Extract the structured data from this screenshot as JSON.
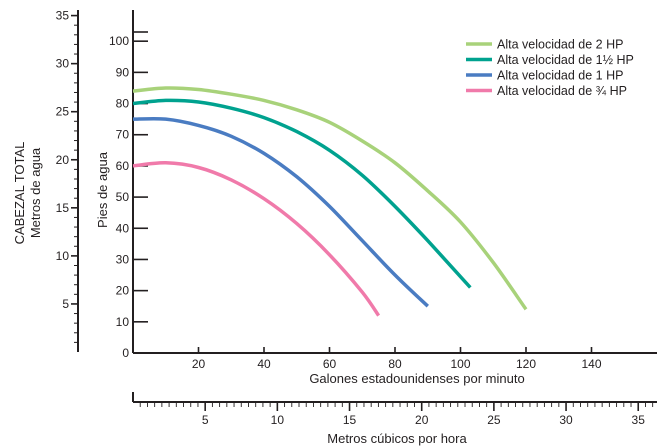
{
  "chart_data": {
    "type": "line",
    "xlabel": "Galones estadounidenses por minuto",
    "ylabel": "Pies de agua",
    "x_ticks": [
      0,
      20,
      40,
      60,
      80,
      100,
      120,
      140
    ],
    "x_tick_labels": [
      "",
      "20",
      "40",
      "60",
      "80",
      "100",
      "120",
      "140"
    ],
    "xlim": [
      0,
      160
    ],
    "y_ticks": [
      0,
      10,
      20,
      30,
      40,
      50,
      60,
      70,
      80,
      90,
      100
    ],
    "y_tick_labels": [
      "0",
      "10",
      "20",
      "30",
      "40",
      "50",
      "60",
      "70",
      "80",
      "90",
      "100"
    ],
    "ylim": [
      0,
      110
    ],
    "secondary_x": {
      "label": "Metros cúbicos por hora",
      "ticks": [
        5,
        10,
        15,
        20,
        25,
        30,
        35
      ],
      "tick_labels": [
        "5",
        "10",
        "15",
        "20",
        "25",
        "30",
        "35"
      ],
      "xlim": [
        0,
        36.3
      ]
    },
    "secondary_y": {
      "title_line1": "CABEZAL TOTAL",
      "title_line2": "Metros de agua",
      "ticks": [
        5,
        10,
        15,
        20,
        25,
        30,
        35
      ],
      "tick_labels": [
        "5",
        "10",
        "15",
        "20",
        "25",
        "30",
        "35"
      ],
      "ylim": [
        0,
        33.5
      ]
    },
    "legend_position": "top-right",
    "series": [
      {
        "name": "Alta velocidad de 2 HP",
        "color": "#a8d27a",
        "x": [
          0,
          10,
          20,
          30,
          40,
          50,
          60,
          70,
          80,
          90,
          100,
          110,
          120
        ],
        "y": [
          84,
          85,
          84.5,
          83,
          81,
          78,
          74,
          68,
          61,
          52,
          42,
          29,
          14
        ]
      },
      {
        "name": "Alta velocidad de 1½ HP",
        "color": "#00a28f",
        "x": [
          0,
          10,
          20,
          30,
          40,
          50,
          60,
          70,
          80,
          90,
          103
        ],
        "y": [
          80,
          81,
          80.5,
          78.5,
          75.5,
          71,
          65,
          57,
          47,
          36,
          21
        ]
      },
      {
        "name": "Alta velocidad de 1 HP",
        "color": "#4a7cc2",
        "x": [
          0,
          10,
          20,
          30,
          40,
          50,
          60,
          70,
          80,
          90
        ],
        "y": [
          75,
          75,
          73,
          69.5,
          64,
          56.5,
          47,
          36,
          25,
          15
        ]
      },
      {
        "name": "Alta velocidad de ¾ HP",
        "color": "#f07aaa",
        "x": [
          0,
          10,
          20,
          30,
          40,
          50,
          60,
          70,
          75
        ],
        "y": [
          60,
          61,
          59.5,
          55.5,
          49.5,
          41.5,
          31.5,
          19.5,
          12
        ]
      }
    ]
  }
}
